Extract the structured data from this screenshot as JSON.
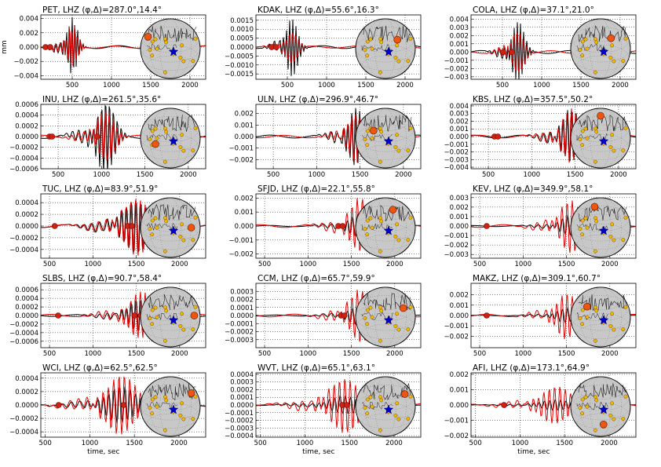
{
  "figure": {
    "ylabel": "mm",
    "xlabel": "time, sec",
    "colors": {
      "observed": "#000000",
      "synthetic": "#e00000",
      "event": "#0000cc",
      "station": "#f0b800",
      "station_hl": "#ee5511",
      "pick": "#cc2211",
      "globe": "#c8c8c8"
    }
  },
  "chart_data": [
    {
      "type": "line",
      "title": "PET, LHZ (φ,Δ)=287.0°,14.4°",
      "xlim": [
        100,
        2200
      ],
      "ylim": [
        -0.0045,
        0.0045
      ],
      "xticks": [
        500,
        1000,
        1500,
        2000
      ],
      "xtick_labels": [
        "500",
        "1000",
        "1500",
        "2000"
      ],
      "yticks": [
        -0.004,
        -0.002,
        0,
        0.002,
        0.004
      ],
      "ytick_labels": [
        "−0.004",
        "−0.002",
        "0.000",
        "0.002",
        "0.004"
      ],
      "picks": [
        [
          160,
          0
        ],
        [
          220,
          0
        ]
      ],
      "burst": {
        "center": 500,
        "width": 200,
        "amp": 0.0041,
        "period": 35
      },
      "syn_ratio": 0.75,
      "station": {
        "lon": -75,
        "lat": 40
      },
      "show_ylabel": true,
      "show_xlabel": false
    },
    {
      "type": "line",
      "title": "KDAK, LHZ (φ,Δ)=55.6°,16.3°",
      "xlim": [
        100,
        2200
      ],
      "ylim": [
        -0.0018,
        0.0018
      ],
      "xticks": [
        500,
        1000,
        1500,
        2000
      ],
      "xtick_labels": [
        "500",
        "1000",
        "1500",
        "2000"
      ],
      "yticks": [
        -0.0015,
        -0.001,
        -0.0005,
        0,
        0.0005,
        0.001,
        0.0015
      ],
      "ytick_labels": [
        "−0.0015",
        "−0.0010",
        "−0.0005",
        "0.0000",
        "0.0005",
        "0.0010",
        "0.0015"
      ],
      "picks": [
        [
          300,
          0
        ],
        [
          360,
          0
        ]
      ],
      "burst": {
        "center": 560,
        "width": 220,
        "amp": 0.0016,
        "period": 40
      },
      "syn_ratio": 0.7,
      "station": {
        "lon": 40,
        "lat": 30
      },
      "show_ylabel": false,
      "show_xlabel": false
    },
    {
      "type": "line",
      "title": "COLA, LHZ (φ,Δ)=37.1°,21.0°",
      "xlim": [
        100,
        2200
      ],
      "ylim": [
        -0.0033,
        0.0045
      ],
      "xticks": [
        500,
        1000,
        1500,
        2000
      ],
      "xtick_labels": [
        "500",
        "1000",
        "1500",
        "2000"
      ],
      "yticks": [
        -0.003,
        -0.002,
        -0.001,
        0,
        0.001,
        0.002,
        0.003,
        0.004
      ],
      "ytick_labels": [
        "−0.003",
        "−0.002",
        "−0.001",
        "0.000",
        "0.001",
        "0.002",
        "0.003",
        "0.004"
      ],
      "picks": [
        [
          510,
          0
        ],
        [
          620,
          0
        ]
      ],
      "burst": {
        "center": 700,
        "width": 230,
        "amp": 0.0036,
        "period": 40
      },
      "syn_ratio": 0.9,
      "station": {
        "lon": 35,
        "lat": 35
      },
      "show_ylabel": false,
      "show_xlabel": false
    },
    {
      "type": "line",
      "title": "INU, LHZ (φ,Δ)=261.5°,35.6°",
      "xlim": [
        300,
        2200
      ],
      "ylim": [
        -0.0006,
        0.0006
      ],
      "xticks": [
        500,
        1000,
        1500,
        2000
      ],
      "xtick_labels": [
        "500",
        "1000",
        "1500",
        "2000"
      ],
      "yticks": [
        -0.0006,
        -0.0004,
        -0.0002,
        0,
        0.0002,
        0.0004,
        0.0006
      ],
      "ytick_labels": [
        "−0.0006",
        "−0.0004",
        "−0.0002",
        "0.0000",
        "0.0002",
        "0.0004",
        "0.0006"
      ],
      "picks": [
        [
          400,
          0
        ],
        [
          430,
          0
        ],
        [
          950,
          0
        ]
      ],
      "burst": {
        "center": 1050,
        "width": 300,
        "amp": 0.0007,
        "period": 45
      },
      "syn_ratio": 0.7,
      "station": {
        "lon": -50,
        "lat": -20
      },
      "show_ylabel": false,
      "show_xlabel": false
    },
    {
      "type": "line",
      "title": "ULN, LHZ (φ,Δ)=296.9°,46.7°",
      "xlim": [
        300,
        2200
      ],
      "ylim": [
        -0.0028,
        0.0028
      ],
      "xticks": [
        500,
        1000,
        1500,
        2000
      ],
      "xtick_labels": [
        "500",
        "1000",
        "1500",
        "2000"
      ],
      "yticks": [
        -0.002,
        -0.001,
        0,
        0.001,
        0.002
      ],
      "ytick_labels": [
        "−0.002",
        "−0.001",
        "0.000",
        "0.001",
        "0.002"
      ],
      "picks": [],
      "burst": {
        "center": 1450,
        "width": 260,
        "amp": 0.0026,
        "period": 45
      },
      "syn_ratio": 0.85,
      "station": {
        "lon": -40,
        "lat": 25
      },
      "show_ylabel": false,
      "show_xlabel": false
    },
    {
      "type": "line",
      "title": "KBS, LHZ (φ,Δ)=357.5°,50.2°",
      "xlim": [
        300,
        2200
      ],
      "ylim": [
        -0.0042,
        0.0042
      ],
      "xticks": [
        500,
        1000,
        1500,
        2000
      ],
      "xtick_labels": [
        "500",
        "1000",
        "1500",
        "2000"
      ],
      "yticks": [
        -0.004,
        -0.003,
        -0.002,
        -0.001,
        0,
        0.001,
        0.002,
        0.003,
        0.004
      ],
      "ytick_labels": [
        "−0.004",
        "−0.003",
        "−0.002",
        "−0.001",
        "0.000",
        "0.001",
        "0.002",
        "0.003",
        "0.004"
      ],
      "picks": [
        [
          570,
          0
        ],
        [
          610,
          0
        ]
      ],
      "burst": {
        "center": 1450,
        "width": 300,
        "amp": 0.0036,
        "period": 50
      },
      "syn_ratio": 1.0,
      "station": {
        "lon": 0,
        "lat": 75
      },
      "show_ylabel": false,
      "show_xlabel": false
    },
    {
      "type": "line",
      "title": "TUC, LHZ (φ,Δ)=83.9°,51.9°",
      "xlim": [
        400,
        2300
      ],
      "ylim": [
        -0.00055,
        0.00055
      ],
      "xticks": [
        500,
        1000,
        1500,
        2000
      ],
      "xtick_labels": [
        "500",
        "1000",
        "1500",
        "2000"
      ],
      "yticks": [
        -0.0004,
        -0.0002,
        0,
        0.0002,
        0.0004
      ],
      "ytick_labels": [
        "−0.0004",
        "−0.0002",
        "0.0000",
        "0.0002",
        "0.0004"
      ],
      "picks": [
        [
          560,
          0
        ],
        [
          1400,
          0
        ],
        [
          1450,
          0
        ]
      ],
      "burst": {
        "center": 1500,
        "width": 450,
        "amp": 0.00048,
        "period": 55
      },
      "syn_ratio": 1.05,
      "station": {
        "lon": 70,
        "lat": 0
      },
      "show_ylabel": false,
      "show_xlabel": false
    },
    {
      "type": "line",
      "title": "SFJD, LHZ (φ,Δ)=22.1°,55.8°",
      "xlim": [
        400,
        2300
      ],
      "ylim": [
        -0.0023,
        0.0023
      ],
      "xticks": [
        500,
        1000,
        1500,
        2000
      ],
      "xtick_labels": [
        "500",
        "1000",
        "1500",
        "2000"
      ],
      "yticks": [
        -0.002,
        -0.001,
        0,
        0.001,
        0.002
      ],
      "ytick_labels": [
        "−0.002",
        "−0.001",
        "0.000",
        "0.001",
        "0.002"
      ],
      "picks": [
        [
          1350,
          0
        ],
        [
          1400,
          0
        ]
      ],
      "burst": {
        "center": 1600,
        "width": 350,
        "amp": 0.0009,
        "period": 60
      },
      "syn_ratio": 2.2,
      "station": {
        "lon": 25,
        "lat": 60
      },
      "show_ylabel": false,
      "show_xlabel": false
    },
    {
      "type": "line",
      "title": "KEV, LHZ (φ,Δ)=349.9°,58.1°",
      "xlim": [
        400,
        2300
      ],
      "ylim": [
        -0.0034,
        0.0034
      ],
      "xticks": [
        500,
        1000,
        1500,
        2000
      ],
      "xtick_labels": [
        "500",
        "1000",
        "1500",
        "2000"
      ],
      "yticks": [
        -0.003,
        -0.002,
        -0.001,
        0,
        0.001,
        0.002,
        0.003
      ],
      "ytick_labels": [
        "−0.003",
        "−0.002",
        "−0.001",
        "0.000",
        "0.001",
        "0.002",
        "0.003"
      ],
      "picks": [
        [
          580,
          0
        ]
      ],
      "burst": {
        "center": 1550,
        "width": 350,
        "amp": 0.0011,
        "period": 60
      },
      "syn_ratio": 2.6,
      "station": {
        "lon": -20,
        "lat": 70
      },
      "show_ylabel": false,
      "show_xlabel": false
    },
    {
      "type": "line",
      "title": "SLBS, LHZ (φ,Δ)=90.7°,58.4°",
      "xlim": [
        400,
        2300
      ],
      "ylim": [
        -0.00075,
        0.00075
      ],
      "xticks": [
        500,
        1000,
        1500,
        2000
      ],
      "xtick_labels": [
        "500",
        "1000",
        "1500",
        "2000"
      ],
      "yticks": [
        -0.0006,
        -0.0004,
        -0.0002,
        0,
        0.0002,
        0.0004,
        0.0006
      ],
      "ytick_labels": [
        "−0.0006",
        "−0.0004",
        "−0.0002",
        "0.0000",
        "0.0002",
        "0.0004",
        "0.0006"
      ],
      "picks": [
        [
          600,
          0
        ],
        [
          1480,
          0
        ],
        [
          1550,
          0
        ]
      ],
      "burst": {
        "center": 1550,
        "width": 400,
        "amp": 0.0004,
        "period": 55
      },
      "syn_ratio": 1.4,
      "station": {
        "lon": 80,
        "lat": 5
      },
      "show_ylabel": false,
      "show_xlabel": false
    },
    {
      "type": "line",
      "title": "CCM, LHZ (φ,Δ)=65.7°,59.9°",
      "xlim": [
        400,
        2300
      ],
      "ylim": [
        -0.0004,
        0.0004
      ],
      "xticks": [
        500,
        1000,
        1500,
        2000
      ],
      "xtick_labels": [
        "500",
        "1000",
        "1500",
        "2000"
      ],
      "yticks": [
        -0.0003,
        -0.0002,
        -0.0001,
        0,
        0.0001,
        0.0002,
        0.0003
      ],
      "ytick_labels": [
        "−0.0003",
        "−0.0002",
        "−0.0001",
        "0.0000",
        "0.0001",
        "0.0002",
        "0.0003"
      ],
      "picks": [
        [
          1380,
          0
        ],
        [
          1420,
          0
        ]
      ],
      "burst": {
        "center": 1600,
        "width": 350,
        "amp": 0.00013,
        "period": 60
      },
      "syn_ratio": 2.6,
      "station": {
        "lon": 60,
        "lat": 30
      },
      "show_ylabel": false,
      "show_xlabel": false
    },
    {
      "type": "line",
      "title": "MAKZ, LHZ (φ,Δ)=309.1°,60.7°",
      "xlim": [
        400,
        2300
      ],
      "ylim": [
        -0.0031,
        0.0031
      ],
      "xticks": [
        500,
        1000,
        1500,
        2000
      ],
      "xtick_labels": [
        "500",
        "1000",
        "1500",
        "2000"
      ],
      "yticks": [
        -0.002,
        -0.001,
        0,
        0.001,
        0.002
      ],
      "ytick_labels": [
        "−0.002",
        "−0.001",
        "0.000",
        "0.001",
        "0.002"
      ],
      "picks": [
        [
          580,
          0
        ]
      ],
      "burst": {
        "center": 1500,
        "width": 350,
        "amp": 0.0007,
        "period": 60
      },
      "syn_ratio": 3.2,
      "station": {
        "lon": -45,
        "lat": 35
      },
      "show_ylabel": false,
      "show_xlabel": false
    },
    {
      "type": "line",
      "title": "WCI, LHZ (φ,Δ)=62.5°,62.5°",
      "xlim": [
        450,
        2300
      ],
      "ylim": [
        -0.00048,
        0.00048
      ],
      "xticks": [
        500,
        1000,
        1500,
        2000
      ],
      "xtick_labels": [
        "500",
        "1000",
        "1500",
        "2000"
      ],
      "yticks": [
        -0.0004,
        -0.0002,
        0,
        0.0002,
        0.0004
      ],
      "ytick_labels": [
        "−0.0004",
        "−0.0002",
        "0.0000",
        "0.0002",
        "0.0004"
      ],
      "picks": [
        [
          650,
          0
        ],
        [
          1380,
          0
        ]
      ],
      "burst": {
        "center": 1350,
        "width": 500,
        "amp": 0.00028,
        "period": 60
      },
      "syn_ratio": 1.6,
      "station": {
        "lon": 70,
        "lat": 45
      },
      "show_ylabel": false,
      "show_xlabel": true
    },
    {
      "type": "line",
      "title": "WVT, LHZ (φ,Δ)=65.1°,63.1°",
      "xlim": [
        450,
        2300
      ],
      "ylim": [
        -0.00042,
        0.00042
      ],
      "xticks": [
        500,
        1000,
        1500,
        2000
      ],
      "xtick_labels": [
        "500",
        "1000",
        "1500",
        "2000"
      ],
      "yticks": [
        -0.0004,
        -0.0003,
        -0.0002,
        -0.0001,
        0,
        0.0001,
        0.0002,
        0.0003,
        0.0004
      ],
      "ytick_labels": [
        "−0.0004",
        "−0.0003",
        "−0.0002",
        "−0.0001",
        "0.0000",
        "0.0001",
        "0.0002",
        "0.0003",
        "0.0004"
      ],
      "picks": [
        [
          1420,
          0
        ],
        [
          1470,
          0
        ]
      ],
      "burst": {
        "center": 1450,
        "width": 500,
        "amp": 0.00012,
        "period": 60
      },
      "syn_ratio": 3.0,
      "station": {
        "lon": 65,
        "lat": 42
      },
      "show_ylabel": false,
      "show_xlabel": true
    },
    {
      "type": "line",
      "title": "AFI, LHZ (φ,Δ)=173.1°,64.9°",
      "xlim": [
        450,
        2300
      ],
      "ylim": [
        -0.0021,
        0.0021
      ],
      "xticks": [
        500,
        1000,
        1500,
        2000
      ],
      "xtick_labels": [
        "500",
        "1000",
        "1500",
        "2000"
      ],
      "yticks": [
        -0.002,
        -0.001,
        0,
        0.001,
        0.002
      ],
      "ytick_labels": [
        "−0.002",
        "−0.001",
        "0.000",
        "0.001",
        "0.002"
      ],
      "picks": [
        [
          820,
          0
        ]
      ],
      "burst": {
        "center": 1400,
        "width": 500,
        "amp": 0.00035,
        "period": 60
      },
      "syn_ratio": 3.5,
      "station": {
        "lon": 10,
        "lat": -60
      },
      "show_ylabel": false,
      "show_xlabel": true
    }
  ]
}
